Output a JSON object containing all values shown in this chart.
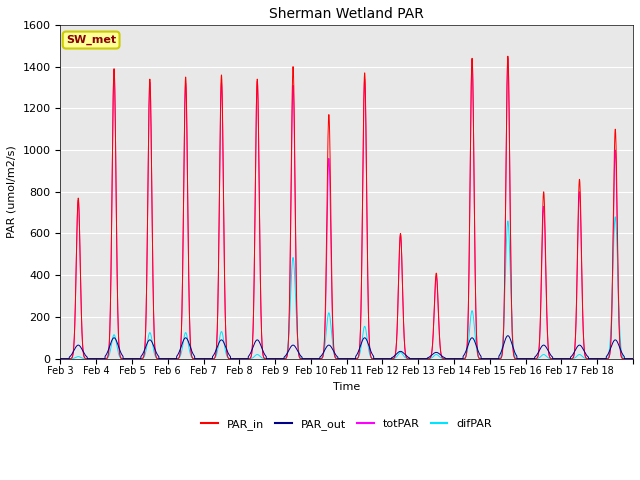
{
  "title": "Sherman Wetland PAR",
  "ylabel": "PAR (umol/m2/s)",
  "xlabel": "Time",
  "annotation": "SW_met",
  "legend_labels": [
    "PAR_in",
    "PAR_out",
    "totPAR",
    "difPAR"
  ],
  "colors": {
    "PAR_in": "#ff0000",
    "PAR_out": "#00008b",
    "totPAR": "#ff00ff",
    "difPAR": "#00e5ff"
  },
  "ylim": [
    0,
    1600
  ],
  "background_color": "#e8e8e8",
  "days": [
    "Feb 3",
    "Feb 4",
    "Feb 5",
    "Feb 6",
    "Feb 7",
    "Feb 8",
    "Feb 9",
    "Feb 10",
    "Feb 11",
    "Feb 12",
    "Feb 13",
    "Feb 14",
    "Feb 15",
    "Feb 16",
    "Feb 17",
    "Feb 18"
  ],
  "peaks_PAR_in": [
    770,
    1390,
    1340,
    1350,
    1360,
    1340,
    1400,
    1170,
    1370,
    600,
    410,
    1440,
    1450,
    800,
    860,
    1100
  ],
  "peaks_PAR_out": [
    65,
    100,
    90,
    100,
    90,
    90,
    65,
    65,
    100,
    35,
    30,
    100,
    110,
    65,
    65,
    90
  ],
  "peaks_totPAR": [
    760,
    1385,
    1325,
    1320,
    1325,
    1330,
    1310,
    960,
    1340,
    595,
    395,
    1435,
    1440,
    730,
    800,
    1000
  ],
  "peaks_difPAR": [
    10,
    115,
    125,
    125,
    130,
    20,
    485,
    220,
    155,
    30,
    20,
    230,
    660,
    20,
    20,
    680
  ],
  "figsize": [
    6.4,
    4.8
  ],
  "dpi": 100
}
